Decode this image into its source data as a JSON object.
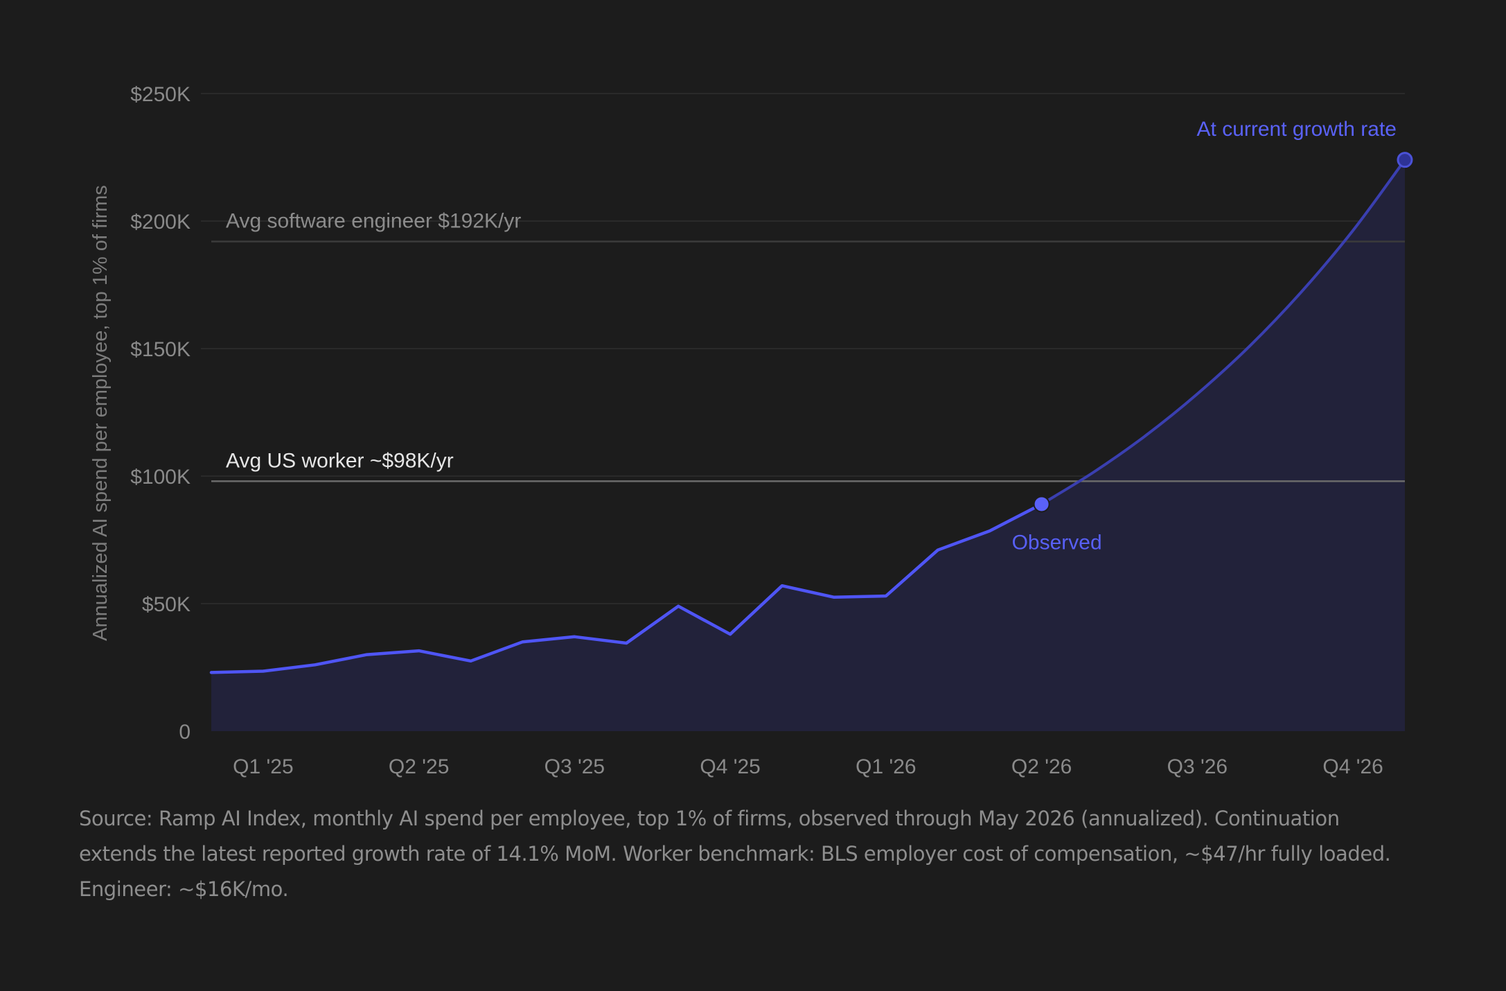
{
  "chart_data": {
    "type": "area",
    "ylabel": "Annualized AI spend per employee, top 1% of firms",
    "ylim": [
      0,
      250000
    ],
    "y_ticks": [
      0,
      50000,
      100000,
      150000,
      200000,
      250000
    ],
    "y_tick_labels": [
      "0",
      "$50K",
      "$100K",
      "$150K",
      "$200K",
      "$250K"
    ],
    "x_range": [
      "2025-01",
      "2026-12"
    ],
    "x_ticks": [
      "2025-02",
      "2025-05",
      "2025-08",
      "2025-11",
      "2026-02",
      "2026-05",
      "2026-08",
      "2026-11"
    ],
    "x_tick_labels": [
      "Q1 '25",
      "Q2 '25",
      "Q3 '25",
      "Q4 '25",
      "Q1 '26",
      "Q2 '26",
      "Q3 '26",
      "Q4 '26"
    ],
    "grid": "horizontal",
    "series": [
      {
        "name": "Observed",
        "x": [
          "2025-01",
          "2025-02",
          "2025-03",
          "2025-04",
          "2025-05",
          "2025-06",
          "2025-07",
          "2025-08",
          "2025-09",
          "2025-10",
          "2025-11",
          "2025-12",
          "2026-01",
          "2026-02",
          "2026-03",
          "2026-04",
          "2026-05"
        ],
        "values": [
          23000,
          23500,
          26000,
          30000,
          31500,
          27500,
          35000,
          37000,
          34500,
          49000,
          38000,
          57000,
          52500,
          53000,
          71000,
          78500,
          89000
        ],
        "color": "#4f55f5"
      },
      {
        "name": "At current growth rate",
        "x": [
          "2026-05",
          "2026-06",
          "2026-07",
          "2026-08",
          "2026-09",
          "2026-10",
          "2026-11",
          "2026-12"
        ],
        "values": [
          89000,
          101500,
          115800,
          132200,
          150800,
          172100,
          196300,
          224000
        ],
        "color": "#3a3fb0"
      }
    ],
    "reference_lines": [
      {
        "label": "Avg software engineer  $192K/yr",
        "value": 192000,
        "color": "#3b3b3b",
        "label_color": "#8c8c8c"
      },
      {
        "label": "Avg US worker  ~$98K/yr",
        "value": 98000,
        "color": "#6b6b6b",
        "label_color": "#e6e6e6"
      }
    ],
    "annotations": [
      {
        "text": "Observed",
        "x": "2026-05",
        "y": 89000,
        "color": "#5860f7"
      },
      {
        "text": "At current growth rate",
        "x": "2026-12",
        "y": 224000,
        "color": "#5a62f7"
      }
    ],
    "area_fill": "#22223a",
    "grid_color": "#2a2a2a",
    "tick_label_color": "#8a8a8a"
  },
  "source_note": "Source: Ramp AI Index, monthly AI spend per employee, top 1% of firms, observed through May 2026 (annualized). Continuation extends the latest reported growth rate of 14.1% MoM. Worker benchmark: BLS employer cost of compensation, ~$47/hr fully loaded. Engineer: ~$16K/mo."
}
